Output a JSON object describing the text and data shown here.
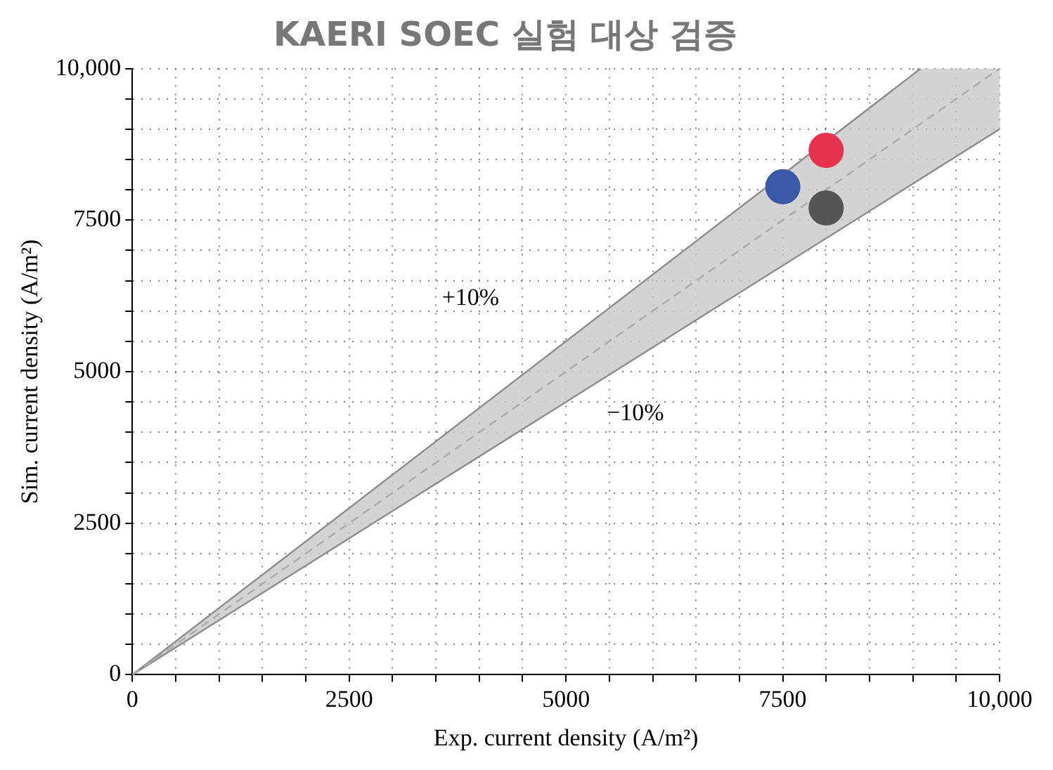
{
  "chart_data": {
    "type": "scatter",
    "title": "KAERI SOEC 실험 대상 검증",
    "xlabel": "Exp. current density (A/m²)",
    "ylabel": "Sim. current density (A/m²)",
    "xlim": [
      0,
      10000
    ],
    "ylim": [
      0,
      10000
    ],
    "xticks": [
      0,
      {
        "value": 500,
        "label": null
      },
      {
        "value": 1000,
        "label": null
      },
      {
        "value": 1500,
        "label": null
      },
      {
        "value": 2000,
        "label": null
      },
      2500,
      {
        "value": 3000,
        "label": null
      },
      {
        "value": 3500,
        "label": null
      },
      {
        "value": 4000,
        "label": null
      },
      {
        "value": 4500,
        "label": null
      },
      5000,
      {
        "value": 5500,
        "label": null
      },
      {
        "value": 6000,
        "label": null
      },
      {
        "value": 6500,
        "label": null
      },
      {
        "value": 7000,
        "label": null
      },
      7500,
      {
        "value": 8000,
        "label": null
      },
      {
        "value": 8500,
        "label": null
      },
      {
        "value": 9000,
        "label": null
      },
      {
        "value": 9500,
        "label": null
      },
      {
        "value": 10000,
        "label": "10,000"
      }
    ],
    "yticks": [
      0,
      {
        "value": 500,
        "label": null
      },
      {
        "value": 1000,
        "label": null
      },
      {
        "value": 1500,
        "label": null
      },
      {
        "value": 2000,
        "label": null
      },
      2500,
      {
        "value": 3000,
        "label": null
      },
      {
        "value": 3500,
        "label": null
      },
      {
        "value": 4000,
        "label": null
      },
      {
        "value": 4500,
        "label": null
      },
      5000,
      {
        "value": 5500,
        "label": null
      },
      {
        "value": 6000,
        "label": null
      },
      {
        "value": 6500,
        "label": null
      },
      {
        "value": 7000,
        "label": null
      },
      7500,
      {
        "value": 8000,
        "label": null
      },
      {
        "value": 8500,
        "label": null
      },
      {
        "value": 9000,
        "label": null
      },
      {
        "value": 9500,
        "label": null
      },
      {
        "value": 10000,
        "label": "10,000"
      }
    ],
    "grid": true,
    "legend": false,
    "series": [
      {
        "type": "line",
        "color": "#aaaaaa",
        "line_style": "dashed",
        "marker": "none",
        "x": [
          0,
          9090,
          10000
        ],
        "values": [
          0,
          9090,
          10000
        ],
        "lower": [
          0,
          8180,
          9000
        ],
        "upper": [
          0,
          10000,
          10000
        ]
      },
      {
        "type": "line",
        "color": "#8c8c8c",
        "line_style": "solid",
        "marker": "none",
        "x": [
          0,
          9090
        ],
        "values": [
          0,
          10000
        ]
      },
      {
        "type": "line",
        "color": "#8c8c8c",
        "line_style": "solid",
        "marker": "none",
        "x": [
          0,
          10000
        ],
        "values": [
          0,
          9000
        ]
      },
      {
        "marker": "circle",
        "x": [
          7500,
          8000,
          8000
        ],
        "values": [
          8050,
          8650,
          7700
        ],
        "colors": [
          "#3b59a8",
          "#e8304f",
          "#555555"
        ]
      }
    ],
    "annotations": [
      "+10%",
      "−10%"
    ]
  }
}
